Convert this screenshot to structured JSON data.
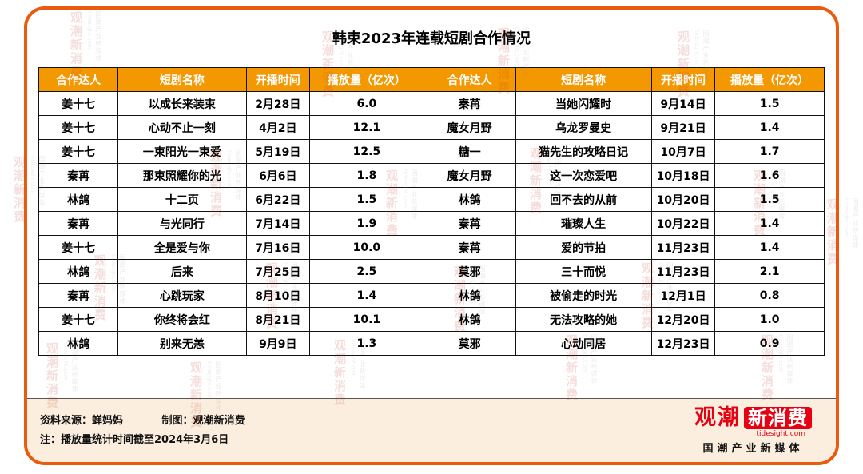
{
  "chart_data": {
    "type": "table",
    "title": "韩束2023年连载短剧合作情况",
    "columns": [
      "合作达人",
      "短剧名称",
      "开播时间",
      "播放量（亿次）",
      "合作达人",
      "短剧名称",
      "开播时间",
      "播放量（亿次）"
    ],
    "rows": [
      [
        "姜十七",
        "以成长来装束",
        "2月28日",
        "6.0",
        "秦苒",
        "当她闪耀时",
        "9月14日",
        "1.5"
      ],
      [
        "姜十七",
        "心动不止一刻",
        "4月2日",
        "12.1",
        "魔女月野",
        "乌龙罗曼史",
        "9月21日",
        "1.4"
      ],
      [
        "姜十七",
        "一束阳光一束爱",
        "5月19日",
        "12.5",
        "糖一",
        "猫先生的攻略日记",
        "10月7日",
        "1.7"
      ],
      [
        "秦苒",
        "那束照耀你的光",
        "6月6日",
        "1.8",
        "魔女月野",
        "这一次恋爱吧",
        "10月18日",
        "1.6"
      ],
      [
        "林鸽",
        "十二页",
        "6月22日",
        "1.5",
        "林鸽",
        "回不去的从前",
        "10月20日",
        "1.5"
      ],
      [
        "秦苒",
        "与光同行",
        "7月14日",
        "1.9",
        "秦苒",
        "璀璨人生",
        "10月22日",
        "1.4"
      ],
      [
        "姜十七",
        "全是爱与你",
        "7月16日",
        "10.0",
        "秦苒",
        "爱的节拍",
        "11月23日",
        "1.4"
      ],
      [
        "林鸽",
        "后来",
        "7月25日",
        "2.5",
        "莫邪",
        "三十而悦",
        "11月23日",
        "2.1"
      ],
      [
        "秦苒",
        "心跳玩家",
        "8月10日",
        "1.4",
        "林鸽",
        "被偷走的时光",
        "12月1日",
        "0.8"
      ],
      [
        "姜十七",
        "你终将会红",
        "8月21日",
        "10.1",
        "林鸽",
        "无法攻略的她",
        "12月20日",
        "1.0"
      ],
      [
        "林鸽",
        "别来无恙",
        "9月9日",
        "1.3",
        "莫邪",
        "心动同居",
        "12月23日",
        "0.9"
      ]
    ]
  },
  "footer": {
    "source": "资料来源：蝉妈妈",
    "credit": "制图：观潮新消费",
    "note": "注：播放量统计时间截至2024年3月6日"
  },
  "logo": {
    "brand_primary": "观潮",
    "brand_secondary": "新消费",
    "domain": "tidesight.com",
    "tagline": "国潮产业新媒体"
  },
  "watermark": {
    "brand": "观潮新消费",
    "domain": "tidesight.com",
    "tagline": "国潮产业新媒体"
  },
  "colors": {
    "header_bg": "#F39800",
    "card_border": "#EA5B10",
    "footer_bg": "#FBEEDE",
    "brand_red": "#E60012"
  }
}
